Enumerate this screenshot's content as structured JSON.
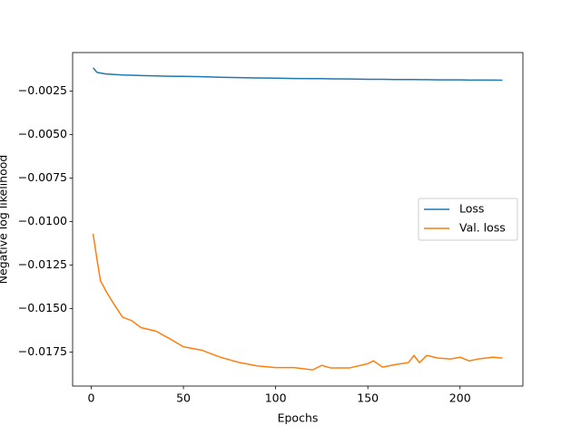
{
  "chart_data": {
    "type": "line",
    "xlabel": "Epochs",
    "ylabel": "Negative log likelihood",
    "x": [
      1,
      3,
      5,
      8,
      12,
      17,
      22,
      27,
      35,
      42,
      50,
      60,
      70,
      80,
      90,
      100,
      110,
      120,
      125,
      130,
      140,
      150,
      153,
      158,
      165,
      172,
      175,
      178,
      182,
      188,
      195,
      200,
      205,
      210,
      218,
      223
    ],
    "series": [
      {
        "name": "Loss",
        "color": "#1f77b4",
        "values": [
          -0.00115,
          -0.00141,
          -0.00146,
          -0.00151,
          -0.00154,
          -0.00157,
          -0.00158,
          -0.0016,
          -0.00162,
          -0.00164,
          -0.00165,
          -0.00167,
          -0.0017,
          -0.00172,
          -0.00174,
          -0.00175,
          -0.00177,
          -0.00178,
          -0.00178,
          -0.00179,
          -0.0018,
          -0.00182,
          -0.00182,
          -0.00182,
          -0.00183,
          -0.00183,
          -0.00183,
          -0.00184,
          -0.00184,
          -0.00185,
          -0.00185,
          -0.00185,
          -0.00186,
          -0.00186,
          -0.00186,
          -0.00187
        ]
      },
      {
        "name": "Val. loss",
        "color": "#ff7f0e",
        "values": [
          -0.0107,
          -0.0121,
          -0.0134,
          -0.014,
          -0.0147,
          -0.0155,
          -0.0157,
          -0.0161,
          -0.0163,
          -0.0167,
          -0.0172,
          -0.0174,
          -0.0178,
          -0.0181,
          -0.0183,
          -0.0184,
          -0.0184,
          -0.01853,
          -0.01827,
          -0.01842,
          -0.01842,
          -0.01817,
          -0.01801,
          -0.01837,
          -0.01822,
          -0.01811,
          -0.0177,
          -0.01811,
          -0.0177,
          -0.01785,
          -0.0179,
          -0.0178,
          -0.01801,
          -0.0179,
          -0.0178,
          -0.01785
        ]
      }
    ],
    "xlim": [
      -10.1,
      234.1
    ],
    "ylim": [
      -0.01946,
      -0.00028
    ],
    "xticks": [
      0,
      50,
      100,
      150,
      200
    ],
    "yticks": [
      {
        "value": -0.0025,
        "label": "−0.0025"
      },
      {
        "value": -0.005,
        "label": "−0.0050"
      },
      {
        "value": -0.0075,
        "label": "−0.0075"
      },
      {
        "value": -0.01,
        "label": "−0.0100"
      },
      {
        "value": -0.0125,
        "label": "−0.0125"
      },
      {
        "value": -0.015,
        "label": "−0.0150"
      },
      {
        "value": -0.0175,
        "label": "−0.0175"
      }
    ],
    "legend": "center right",
    "grid": false
  }
}
